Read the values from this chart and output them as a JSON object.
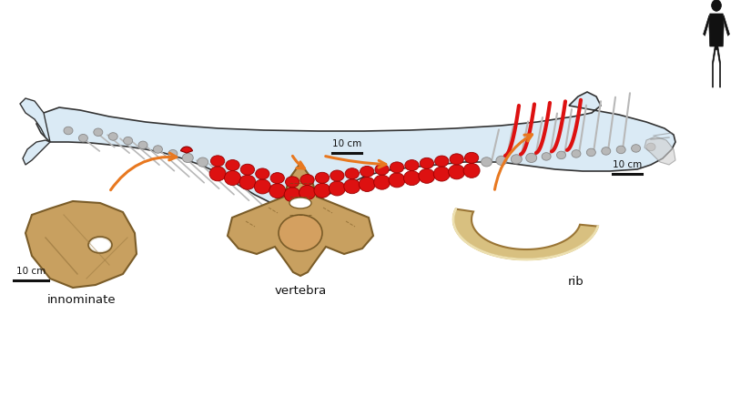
{
  "bg_color": "#ffffff",
  "body_fill": "#daeaf5",
  "body_outline": "#333333",
  "bone_gray": "#b8b8b8",
  "bone_red": "#dd1111",
  "arrow_color": "#e87820",
  "arrow_lw": 2.2,
  "scale_bar_color": "#111111",
  "text_color": "#111111",
  "label_innominate": "innominate",
  "label_vertebra": "vertebra",
  "label_rib": "rib",
  "scale_label": "10 cm",
  "human_color": "#111111",
  "bone_tan": "#c8a060",
  "fig_w": 8.25,
  "fig_h": 4.46,
  "dpi": 100
}
